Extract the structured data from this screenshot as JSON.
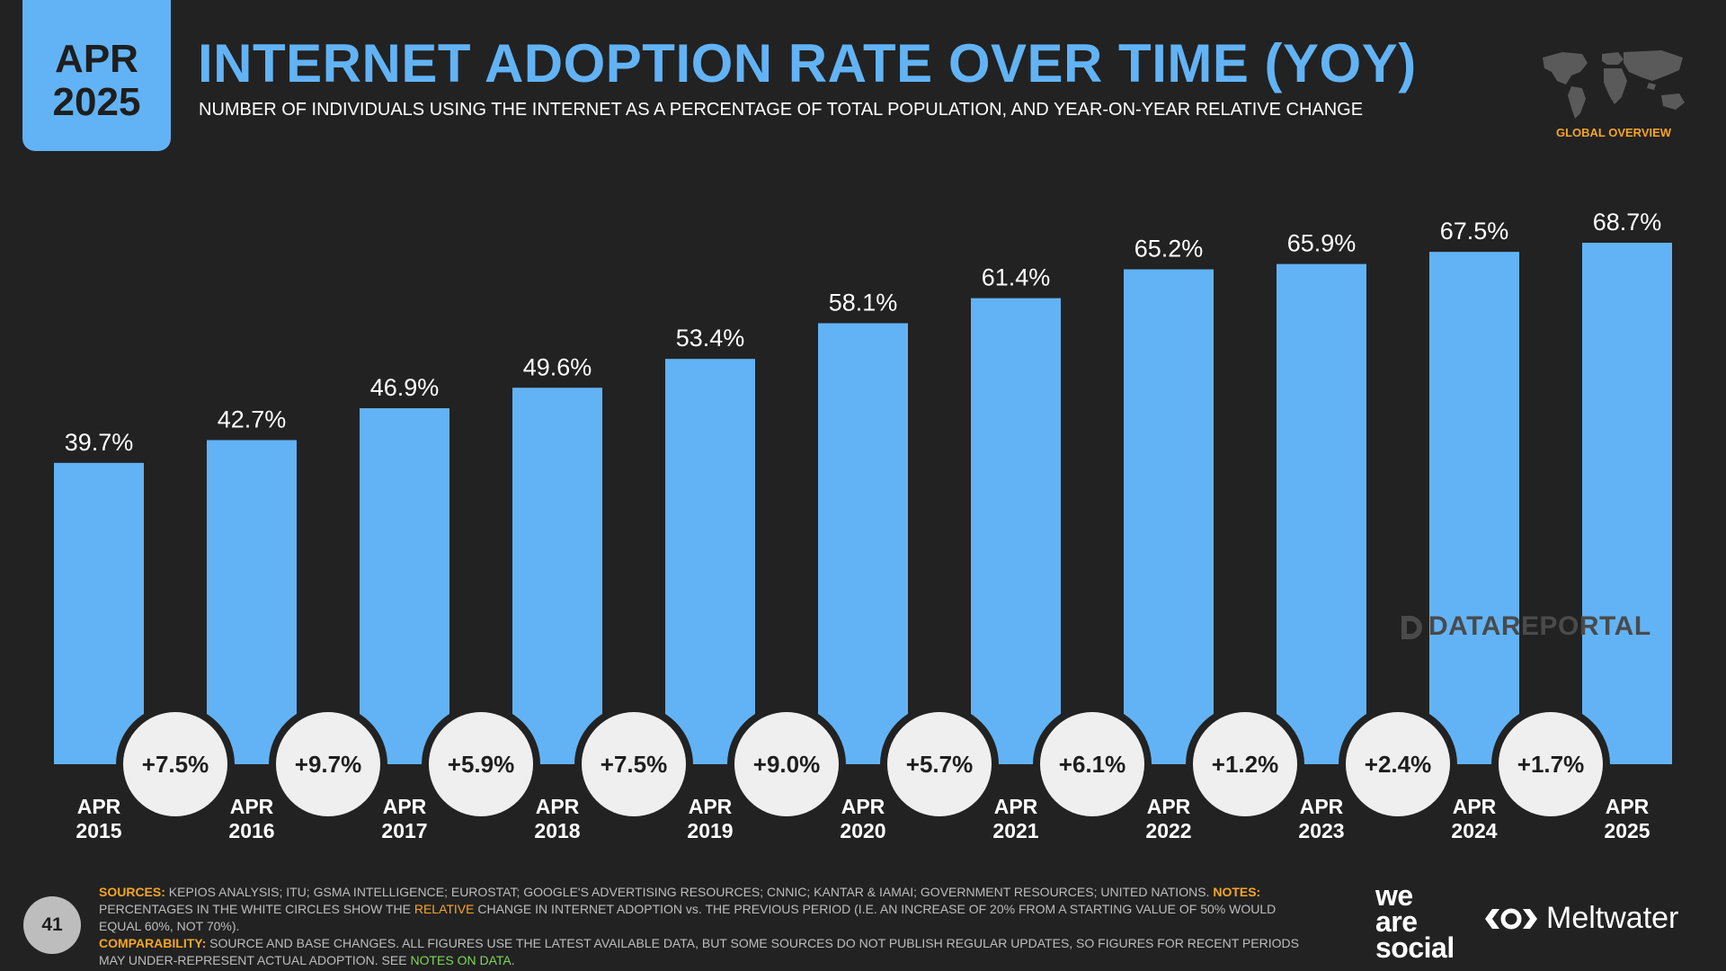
{
  "badge": {
    "month": "APR",
    "year": "2025"
  },
  "title": "INTERNET ADOPTION RATE OVER TIME (YOY)",
  "subtitle": "NUMBER OF INDIVIDUALS USING THE INTERNET AS A PERCENTAGE OF TOTAL POPULATION, AND YEAR-ON-YEAR RELATIVE CHANGE",
  "section_label": "GLOBAL OVERVIEW",
  "watermark": "DATAREPORTAL",
  "page_number": "41",
  "footnote": {
    "sources_key": "SOURCES:",
    "sources_text": " KEPIOS ANALYSIS; ITU; GSMA INTELLIGENCE; EUROSTAT; GOOGLE'S ADVERTISING RESOURCES; CNNIC; KANTAR & IAMAI; GOVERNMENT RESOURCES; UNITED NATIONS. ",
    "notes_key": "NOTES:",
    "notes_text_1": " PERCENTAGES IN THE WHITE CIRCLES SHOW THE ",
    "notes_highlight": "RELATIVE",
    "notes_text_2": " CHANGE IN INTERNET ADOPTION vs. THE PREVIOUS PERIOD (I.E. AN INCREASE OF 20% FROM A STARTING VALUE OF 50% WOULD EQUAL 60%, NOT 70%).",
    "comparability_key": "COMPARABILITY:",
    "comparability_text": " SOURCE AND BASE CHANGES. ALL FIGURES USE THE LATEST AVAILABLE DATA, BUT SOME SOURCES DO NOT PUBLISH REGULAR UPDATES, SO FIGURES FOR RECENT PERIODS MAY UNDER-REPRESENT ACTUAL ADOPTION. SEE ",
    "link_text": "NOTES ON DATA",
    "end_text": "."
  },
  "brands": {
    "partner_1": "we are social",
    "partner_2": "Meltwater"
  },
  "colors": {
    "background": "#222222",
    "bar": "#62b3f5",
    "accent": "#f5a623",
    "circle": "#efefef"
  },
  "icons": [
    "world-map-icon",
    "datareportal-logo-icon",
    "meltwater-logo-icon"
  ],
  "chart_data": {
    "type": "bar",
    "categories": [
      [
        "APR",
        "2015"
      ],
      [
        "APR",
        "2016"
      ],
      [
        "APR",
        "2017"
      ],
      [
        "APR",
        "2018"
      ],
      [
        "APR",
        "2019"
      ],
      [
        "APR",
        "2020"
      ],
      [
        "APR",
        "2021"
      ],
      [
        "APR",
        "2022"
      ],
      [
        "APR",
        "2023"
      ],
      [
        "APR",
        "2024"
      ],
      [
        "APR",
        "2025"
      ]
    ],
    "values": [
      39.7,
      42.7,
      46.9,
      49.6,
      53.4,
      58.1,
      61.4,
      65.2,
      65.9,
      67.5,
      68.7
    ],
    "value_labels": [
      "39.7%",
      "42.7%",
      "46.9%",
      "49.6%",
      "53.4%",
      "58.1%",
      "61.4%",
      "65.2%",
      "65.9%",
      "67.5%",
      "68.7%"
    ],
    "yoy_change_labels": [
      "+7.5%",
      "+9.7%",
      "+5.9%",
      "+7.5%",
      "+9.0%",
      "+5.7%",
      "+6.1%",
      "+1.2%",
      "+2.4%",
      "+1.7%"
    ],
    "ylim": [
      0,
      68.7
    ],
    "grid": false,
    "legend": "none"
  }
}
